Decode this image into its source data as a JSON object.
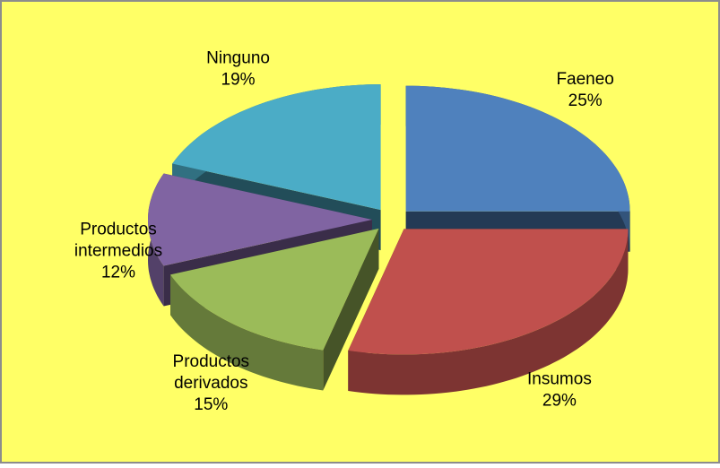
{
  "chart_data": {
    "type": "pie",
    "categories": [
      "Faeneo",
      "Insumos",
      "Productos derivados",
      "Productos intermedios",
      "Ninguno"
    ],
    "values": [
      25,
      29,
      15,
      12,
      19
    ],
    "value_labels": [
      "25%",
      "29%",
      "15%",
      "12%",
      "19%"
    ],
    "colors": [
      "#4f81bd",
      "#c0504d",
      "#9bbb59",
      "#8064a2",
      "#4bacc6"
    ]
  }
}
